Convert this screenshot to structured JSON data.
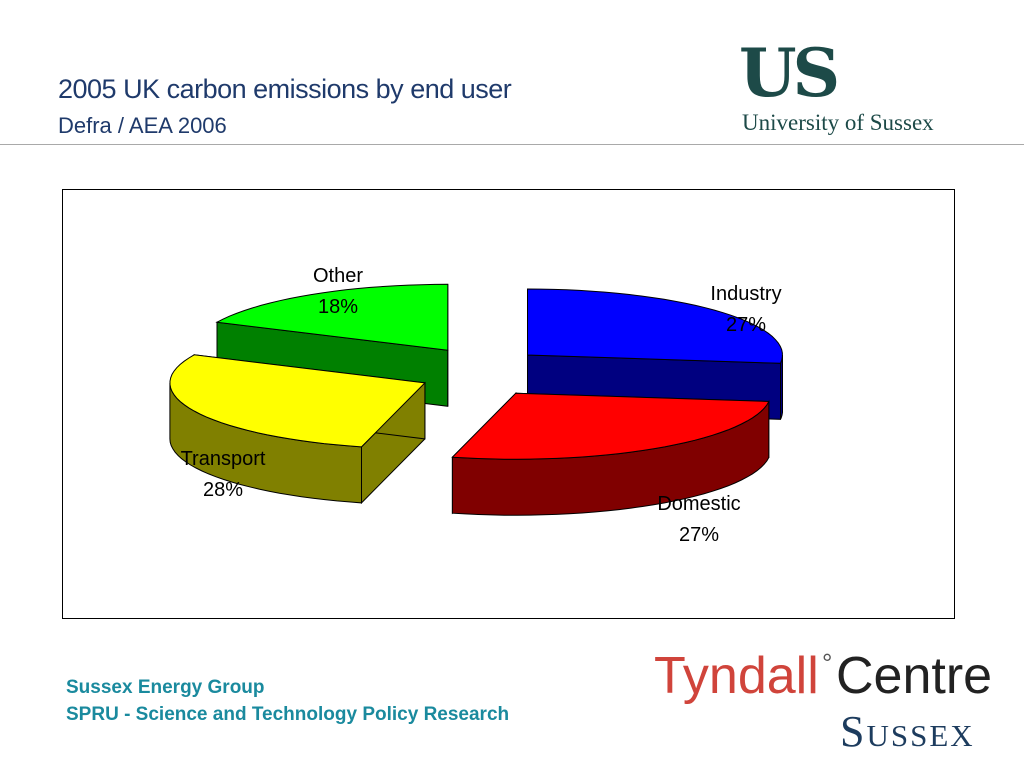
{
  "header": {
    "title": "2005 UK carbon emissions by end user",
    "subtitle": "Defra / AEA 2006"
  },
  "logos": {
    "us_mark": "US",
    "us_name": "University of Sussex",
    "tyndall_red": "Tyndall",
    "tyndall_degree": "°",
    "tyndall_black": "Centre",
    "tyndall_sussex": "Sussex"
  },
  "footer": {
    "line1": "Sussex Energy Group",
    "line2": "SPRU - Science and Technology Policy Research"
  },
  "chart_data": {
    "type": "pie",
    "style": "3d-exploded",
    "title": "",
    "slices": [
      {
        "name": "Industry",
        "label": "27%",
        "value": 27,
        "top_color": "#0000ff",
        "side_color": "#000080"
      },
      {
        "name": "Domestic",
        "label": "27%",
        "value": 27,
        "top_color": "#ff0000",
        "side_color": "#800000"
      },
      {
        "name": "Transport",
        "label": "28%",
        "value": 28,
        "top_color": "#ffff00",
        "side_color": "#808000"
      },
      {
        "name": "Other",
        "label": "18%",
        "value": 18,
        "top_color": "#00ff00",
        "side_color": "#008000"
      }
    ],
    "legend": "none"
  }
}
